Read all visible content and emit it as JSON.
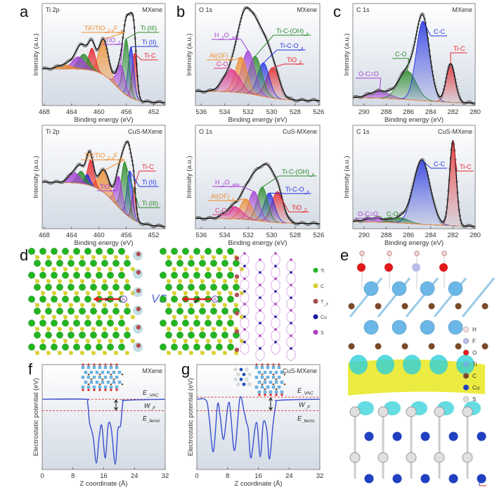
{
  "panel_letters": [
    "a",
    "b",
    "c",
    "d",
    "e",
    "f",
    "g"
  ],
  "chart_data": [
    {
      "id": "a-mxene",
      "type": "area",
      "title": "Ti 2p",
      "sample": "MXene",
      "xlabel": "Binding energy (eV)",
      "ylabel": "Intensity (a.u.)",
      "xlim": [
        468.3,
        450.3
      ],
      "xticks": [
        468,
        464,
        460,
        456,
        452
      ],
      "grid": false,
      "background": {
        "left": 0.36,
        "right": 0.03,
        "center": 457.5,
        "width": 1.2
      },
      "components": [
        {
          "label": [
            "Ti-C"
          ],
          "center": 454.8,
          "amplitude": 0.45,
          "sigma": 0.35,
          "color": "#e8262b"
        },
        {
          "label": [
            "Ti (II)"
          ],
          "center": 455.3,
          "amplitude": 0.5,
          "sigma": 0.4,
          "color": "#2433e0"
        },
        {
          "label": [
            "Ti (III)"
          ],
          "center": 456.0,
          "amplitude": 0.55,
          "sigma": 0.45,
          "color": "#2a8a2a"
        },
        {
          "label": [
            "TiO",
            "_2"
          ],
          "center": 456.8,
          "amplitude": 0.25,
          "sigma": 0.6,
          "color": "#a63fd6"
        },
        {
          "label": [
            "TiF/TiO",
            "_2-x",
            "F",
            "_x"
          ],
          "center": 459.3,
          "amplitude": 0.35,
          "sigma": 0.7,
          "color": "#f08c2a"
        },
        {
          "label": null,
          "center": 461.0,
          "amplitude": 0.22,
          "sigma": 0.5,
          "color": "#e8262b"
        },
        {
          "label": null,
          "center": 462.2,
          "amplitude": 0.15,
          "sigma": 0.8,
          "color": "#2a8a2a"
        },
        {
          "label": null,
          "center": 463.0,
          "amplitude": 0.12,
          "sigma": 0.9,
          "color": "#a63fd6"
        },
        {
          "label": null,
          "center": 465.0,
          "amplitude": 0.04,
          "sigma": 1.0,
          "color": "#f08c2a"
        }
      ]
    },
    {
      "id": "b-mxene",
      "type": "area",
      "title": "O 1s",
      "sample": "MXene",
      "xlabel": "Binding energy (eV)",
      "ylabel": "Intensity (a.u.)",
      "xlim": [
        536.5,
        525.9
      ],
      "xticks": [
        536,
        534,
        532,
        530,
        528,
        526
      ],
      "grid": false,
      "background": {
        "left": 0.14,
        "right": 0.05,
        "center": 531,
        "width": 1.0
      },
      "components": [
        {
          "label": [
            "TiO",
            "_2"
          ],
          "center": 529.9,
          "amplitude": 0.3,
          "sigma": 0.55,
          "color": "#e8262b"
        },
        {
          "label": [
            "Ti-C-O",
            "_x"
          ],
          "center": 530.7,
          "amplitude": 0.33,
          "sigma": 0.5,
          "color": "#2433e0"
        },
        {
          "label": [
            "Ti-C-(OH)",
            "_x"
          ],
          "center": 531.4,
          "amplitude": 0.38,
          "sigma": 0.55,
          "color": "#2a8a2a"
        },
        {
          "label": [
            "H",
            "_2",
            "O",
            "_ads"
          ],
          "center": 532.0,
          "amplitude": 0.42,
          "sigma": 0.55,
          "color": "#a63fd6"
        },
        {
          "label": [
            "Al(OF)",
            "_x"
          ],
          "center": 532.6,
          "amplitude": 0.35,
          "sigma": 0.5,
          "color": "#f08c2a"
        },
        {
          "label": [
            "C-O"
          ],
          "center": 533.4,
          "amplitude": 0.22,
          "sigma": 0.7,
          "color": "#e0308a"
        }
      ]
    },
    {
      "id": "c-mxene",
      "type": "area",
      "title": "C 1s",
      "sample": "MXene",
      "xlabel": "Binding energy (eV)",
      "ylabel": "Intensity (a.u.)",
      "xlim": [
        291,
        280
      ],
      "xticks": [
        290,
        288,
        286,
        284,
        282,
        280
      ],
      "grid": false,
      "background": {
        "left": 0.08,
        "right": 0.02,
        "center": 285,
        "width": 2.0
      },
      "components": [
        {
          "label": [
            "O-C=O"
          ],
          "center": 288.6,
          "amplitude": 0.07,
          "sigma": 0.9,
          "color": "#a63fd6"
        },
        {
          "label": [
            "C-O"
          ],
          "center": 286.1,
          "amplitude": 0.28,
          "sigma": 0.8,
          "color": "#2a8a2a"
        },
        {
          "label": [
            "C-C"
          ],
          "center": 284.7,
          "amplitude": 0.78,
          "sigma": 0.6,
          "color": "#2433e0"
        },
        {
          "label": [
            "Ti-C"
          ],
          "center": 282.2,
          "amplitude": 0.38,
          "sigma": 0.4,
          "color": "#e8262b"
        }
      ]
    },
    {
      "id": "a-cus",
      "type": "area",
      "title": "Ti 2p",
      "sample": "CuS-MXene",
      "xlabel": "Binding energy (eV)",
      "ylabel": "Intensity (a.u.)",
      "xlim": [
        468.3,
        450.3
      ],
      "xticks": [
        468,
        464,
        460,
        456,
        452
      ],
      "grid": false,
      "background": {
        "left": 0.45,
        "right": 0.02,
        "center": 457.5,
        "width": 1.5
      },
      "components": [
        {
          "label": [
            "Ti-C"
          ],
          "center": 454.9,
          "amplitude": 0.3,
          "sigma": 0.3,
          "color": "#e8262b"
        },
        {
          "label": [
            "Ti (II)"
          ],
          "center": 455.5,
          "amplitude": 0.45,
          "sigma": 0.4,
          "color": "#2433e0"
        },
        {
          "label": [
            "Ti (III)"
          ],
          "center": 456.2,
          "amplitude": 0.5,
          "sigma": 0.5,
          "color": "#2a8a2a"
        },
        {
          "label": [
            "TiO",
            "_2"
          ],
          "center": 457.1,
          "amplitude": 0.3,
          "sigma": 0.5,
          "color": "#a63fd6"
        },
        {
          "label": [
            "TiF/TiO",
            "_2-x",
            "F",
            "_x"
          ],
          "center": 459.2,
          "amplitude": 0.22,
          "sigma": 0.8,
          "color": "#f08c2a"
        },
        {
          "label": null,
          "center": 461.2,
          "amplitude": 0.25,
          "sigma": 0.45,
          "color": "#e8262b"
        },
        {
          "label": null,
          "center": 461.7,
          "amplitude": 0.1,
          "sigma": 0.4,
          "color": "#2433e0"
        },
        {
          "label": null,
          "center": 462.6,
          "amplitude": 0.12,
          "sigma": 0.6,
          "color": "#2a8a2a"
        },
        {
          "label": null,
          "center": 463.6,
          "amplitude": 0.1,
          "sigma": 0.8,
          "color": "#a63fd6"
        }
      ]
    },
    {
      "id": "b-cus",
      "type": "area",
      "title": "O 1s",
      "sample": "CuS-MXene",
      "xlabel": "Binding energy (eV)",
      "ylabel": "Intensity (a.u.)",
      "xlim": [
        536.5,
        525.9
      ],
      "xticks": [
        536,
        534,
        532,
        530,
        528,
        526
      ],
      "grid": false,
      "background": {
        "left": 0.1,
        "right": 0.05,
        "center": 531,
        "width": 1.0
      },
      "components": [
        {
          "label": [
            "TiO",
            "_2"
          ],
          "center": 529.5,
          "amplitude": 0.3,
          "sigma": 0.5,
          "color": "#e8262b"
        },
        {
          "label": [
            "Ti-C-O",
            "_x"
          ],
          "center": 530.2,
          "amplitude": 0.28,
          "sigma": 0.45,
          "color": "#2433e0"
        },
        {
          "label": [
            "Ti-C-(OH)",
            "_x"
          ],
          "center": 530.8,
          "amplitude": 0.33,
          "sigma": 0.45,
          "color": "#2a8a2a"
        },
        {
          "label": [
            "H",
            "_2",
            "O",
            "_ads"
          ],
          "center": 531.5,
          "amplitude": 0.28,
          "sigma": 0.45,
          "color": "#a63fd6"
        },
        {
          "label": [
            "Al(OF)",
            "_x"
          ],
          "center": 532.2,
          "amplitude": 0.2,
          "sigma": 0.5,
          "color": "#f08c2a"
        },
        {
          "label": [
            "C-O"
          ],
          "center": 533.2,
          "amplitude": 0.12,
          "sigma": 0.7,
          "color": "#e0308a"
        }
      ]
    },
    {
      "id": "c-cus",
      "type": "area",
      "title": "C 1s",
      "sample": "CuS-MXene",
      "xlabel": "Binding energy (eV)",
      "ylabel": "Intensity (a.u.)",
      "xlim": [
        291,
        280
      ],
      "xticks": [
        290,
        288,
        286,
        284,
        282,
        280
      ],
      "grid": false,
      "background": {
        "left": 0.07,
        "right": 0.02,
        "center": 285,
        "width": 2.0
      },
      "components": [
        {
          "label": [
            "O-C=O"
          ],
          "center": 289.0,
          "amplitude": 0.04,
          "sigma": 0.9,
          "color": "#a63fd6"
        },
        {
          "label": [
            "C-O"
          ],
          "center": 286.7,
          "amplitude": 0.05,
          "sigma": 0.7,
          "color": "#2a8a2a"
        },
        {
          "label": [
            "C-C"
          ],
          "center": 284.8,
          "amplitude": 0.62,
          "sigma": 0.75,
          "color": "#2433e0"
        },
        {
          "label": [
            "Ti-C"
          ],
          "center": 282.0,
          "amplitude": 0.82,
          "sigma": 0.3,
          "color": "#e8262b"
        }
      ]
    },
    {
      "id": "f",
      "type": "line",
      "sample": "MXene",
      "xlabel": "Z coordinate (Å)",
      "ylabel": "Electrostatic potential (eV)",
      "xlim": [
        0,
        32
      ],
      "xticks": [
        0,
        8,
        16,
        24,
        32
      ],
      "grid": false,
      "line_color": "#3a4fd0",
      "points": [
        [
          0,
          0.67
        ],
        [
          11,
          0.67
        ],
        [
          11.8,
          0.64
        ],
        [
          12.3,
          0.45
        ],
        [
          12.8,
          0.38
        ],
        [
          13.3,
          0.3
        ],
        [
          14.1,
          0.06
        ],
        [
          14.8,
          0.3
        ],
        [
          15.5,
          0.42
        ],
        [
          16.4,
          0.11
        ],
        [
          17.2,
          0.43
        ],
        [
          18,
          0.38
        ],
        [
          19,
          0.05
        ],
        [
          19.7,
          0.38
        ],
        [
          20.4,
          0.42
        ],
        [
          21,
          0.64
        ],
        [
          21.8,
          0.66
        ],
        [
          32,
          0.67
        ]
      ],
      "levels": {
        "vac": 0.67,
        "fermi": 0.56
      },
      "level_labels": {
        "vac": [
          "E",
          "_VAC"
        ],
        "wf": [
          "W",
          "_F"
        ],
        "fermi": [
          "E",
          "_fermi"
        ]
      }
    },
    {
      "id": "g",
      "type": "line",
      "sample": "CuS-MXene",
      "xlabel": "Z coordinate (Å)",
      "ylabel": "Electrostatic potential (eV)",
      "xlim": [
        0,
        32
      ],
      "xticks": [
        0,
        8,
        16,
        24,
        32
      ],
      "grid": false,
      "line_color": "#3a4fd0",
      "points": [
        [
          0,
          0.67
        ],
        [
          2.4,
          0.66
        ],
        [
          3.2,
          0.5
        ],
        [
          4.3,
          0.17
        ],
        [
          5.4,
          0.62
        ],
        [
          6.1,
          0.5
        ],
        [
          7,
          0.29
        ],
        [
          8.4,
          0.64
        ],
        [
          9.8,
          0.18
        ],
        [
          11.2,
          0.68
        ],
        [
          12.3,
          0.55
        ],
        [
          12.9,
          0.45
        ],
        [
          13.4,
          0.38
        ],
        [
          14.1,
          0.11
        ],
        [
          15.5,
          0.45
        ],
        [
          16.5,
          0.12
        ],
        [
          17.3,
          0.45
        ],
        [
          18.2,
          0.38
        ],
        [
          18.9,
          0.1
        ],
        [
          19.8,
          0.42
        ],
        [
          20.6,
          0.63
        ],
        [
          21.5,
          0.66
        ],
        [
          32,
          0.67
        ]
      ],
      "levels": {
        "vac": 0.69,
        "fermi": 0.56
      },
      "level_labels": {
        "vac": [
          "E",
          "_VAC"
        ],
        "wf": [
          "W",
          "_F"
        ],
        "fermi": [
          "E",
          "_fermi"
        ]
      }
    }
  ],
  "panel_d": {
    "vs_label": "VS",
    "legend": [
      {
        "label": [
          "Ti"
        ],
        "color": "#22b522"
      },
      {
        "label": [
          "C"
        ],
        "color": "#d8d030"
      },
      {
        "label": [
          "T",
          "_x"
        ],
        "color": "#a05050"
      },
      {
        "label": [
          "Cu"
        ],
        "color": "#1a1aa0"
      },
      {
        "label": [
          "S"
        ],
        "color": "#b040c0"
      }
    ],
    "blocked_mark": "×",
    "allowed_mark": "✓",
    "ion_label": "h"
  },
  "panel_e": {
    "legend": [
      {
        "label": "H",
        "color": "#f4dada"
      },
      {
        "label": "F",
        "color": "#b8bde8"
      },
      {
        "label": "O",
        "color": "#e01a1a"
      },
      {
        "label": "Ti",
        "color": "#6bb8e8"
      },
      {
        "label": "C",
        "color": "#7a4a28"
      },
      {
        "label": "Cu",
        "color": "#2040c0"
      },
      {
        "label": "S",
        "color": "#e0e0e0"
      }
    ]
  }
}
